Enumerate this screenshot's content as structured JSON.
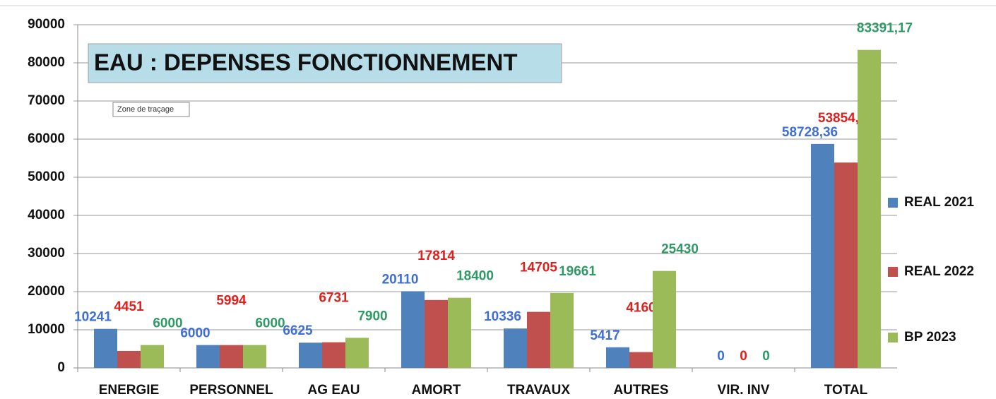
{
  "chart_data": {
    "type": "bar",
    "title": "EAU : DEPENSES FONCTIONNEMENT",
    "tooltip": "Zone de traçage",
    "categories": [
      "ENERGIE",
      "PERSONNEL",
      "AG EAU",
      "AMORT",
      "TRAVAUX",
      "AUTRES",
      "VIR. INV",
      "TOTAL"
    ],
    "series": [
      {
        "name": "REAL 2021",
        "color": "#4f81bd",
        "label_color": "#3f6fd6",
        "values": [
          10241,
          6000,
          6625,
          20110,
          10336,
          5417,
          0,
          58728.36
        ],
        "value_labels": [
          "10241",
          "6000",
          "6625",
          "20110",
          "10336",
          "5417",
          "0",
          "58728,36"
        ]
      },
      {
        "name": "REAL 2022",
        "color": "#c0504d",
        "label_color": "#e0201c",
        "values": [
          4451,
          5994,
          6731,
          17814,
          14705,
          4160,
          0,
          53854.72
        ],
        "value_labels": [
          "4451",
          "5994",
          "6731",
          "17814",
          "14705",
          "4160",
          "0",
          "53854,72"
        ]
      },
      {
        "name": "BP 2023",
        "color": "#9bbb59",
        "label_color": "#2f9a66",
        "values": [
          6000,
          6000,
          7900,
          18400,
          19661,
          25430,
          0,
          83391.17
        ],
        "value_labels": [
          "6000",
          "6000",
          "7900",
          "18400",
          "19661",
          "25430",
          "0",
          "83391,17"
        ]
      }
    ],
    "ylim": [
      0,
      90000
    ],
    "yticks": [
      0,
      10000,
      20000,
      30000,
      40000,
      50000,
      60000,
      70000,
      80000,
      90000
    ],
    "grid": true,
    "legend": "right"
  }
}
